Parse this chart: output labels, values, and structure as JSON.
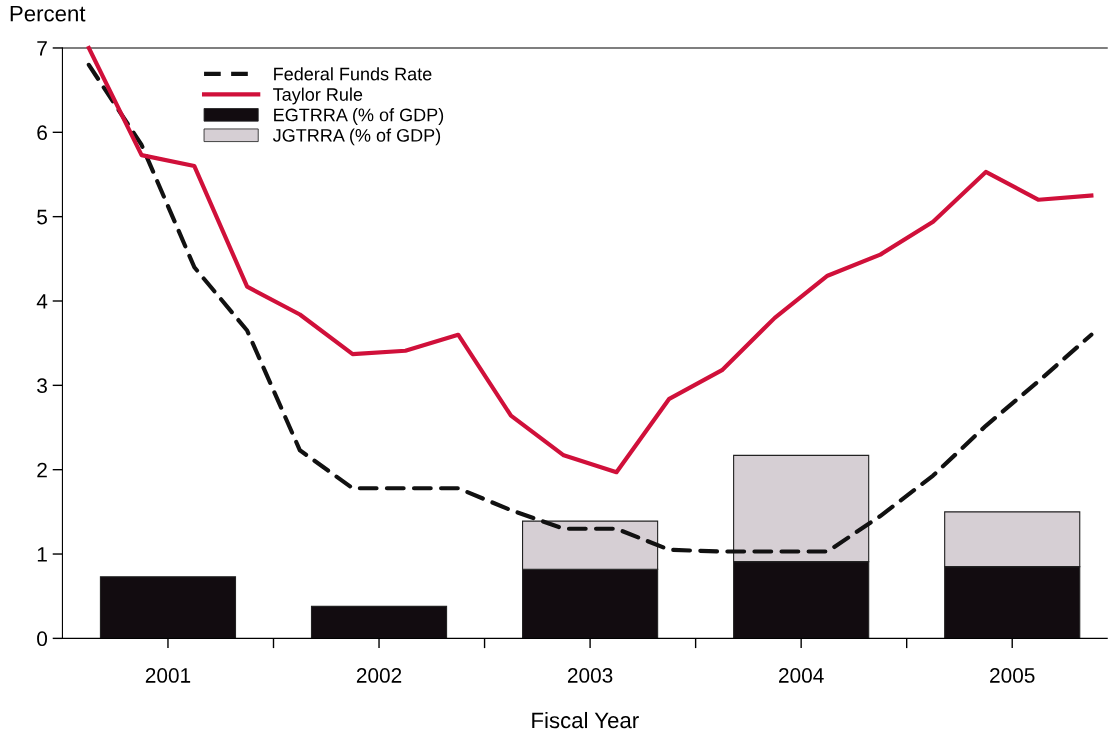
{
  "chart_data": {
    "type": "bar",
    "ylabel": "Percent",
    "xlabel": "Fiscal Year",
    "x": [
      2001,
      2002,
      2003,
      2004,
      2005
    ],
    "stacked": true,
    "series": [
      {
        "name": "Federal Funds Rate",
        "type": "line",
        "line_style": "dashed",
        "color": "#111111",
        "x": [
          2000.625,
          2000.875,
          2001.125,
          2001.375,
          2001.625,
          2001.875,
          2002.125,
          2002.375,
          2002.625,
          2002.875,
          2003.125,
          2003.375,
          2003.625,
          2003.875,
          2004.125,
          2004.375,
          2004.625,
          2004.875,
          2005.125,
          2005.375
        ],
        "values": [
          6.8,
          5.85,
          4.4,
          3.65,
          2.23,
          1.78,
          1.78,
          1.78,
          1.52,
          1.3,
          1.3,
          1.05,
          1.03,
          1.03,
          1.03,
          1.45,
          1.93,
          2.52,
          3.05,
          3.6
        ]
      },
      {
        "name": "Taylor Rule",
        "type": "line",
        "line_style": "solid",
        "color": "#d0103a",
        "x": [
          2000.625,
          2000.875,
          2001.125,
          2001.375,
          2001.625,
          2001.875,
          2002.125,
          2002.375,
          2002.625,
          2002.875,
          2003.125,
          2003.375,
          2003.625,
          2003.875,
          2004.125,
          2004.375,
          2004.625,
          2004.875,
          2005.125,
          2005.375
        ],
        "values": [
          7.0,
          5.73,
          5.6,
          4.17,
          3.84,
          3.37,
          3.41,
          3.6,
          2.64,
          2.17,
          1.97,
          2.84,
          3.18,
          3.8,
          4.3,
          4.55,
          4.94,
          5.53,
          5.2,
          5.25
        ]
      },
      {
        "name": "EGTRRA (% of GDP)",
        "color": "#120c10",
        "values": [
          0.73,
          0.38,
          0.82,
          0.91,
          0.85
        ]
      },
      {
        "name": "JGTRRA (% of GDP)",
        "color": "#d6cfd4",
        "values": [
          null,
          null,
          0.57,
          1.26,
          0.65
        ]
      }
    ],
    "xlim": [
      2000.5,
      2005.45
    ],
    "xticks": [
      2001,
      2002,
      2003,
      2004,
      2005,
      {
        "value": 2001.5,
        "label": null
      },
      {
        "value": 2002.5,
        "label": null
      },
      {
        "value": 2003.5,
        "label": null
      },
      {
        "value": 2004.5,
        "label": null
      }
    ],
    "ylim": [
      0,
      7
    ],
    "yticks": [
      0,
      1,
      2,
      3,
      4,
      5,
      6,
      7
    ],
    "grid": false,
    "legend": "top",
    "marker": "none"
  }
}
